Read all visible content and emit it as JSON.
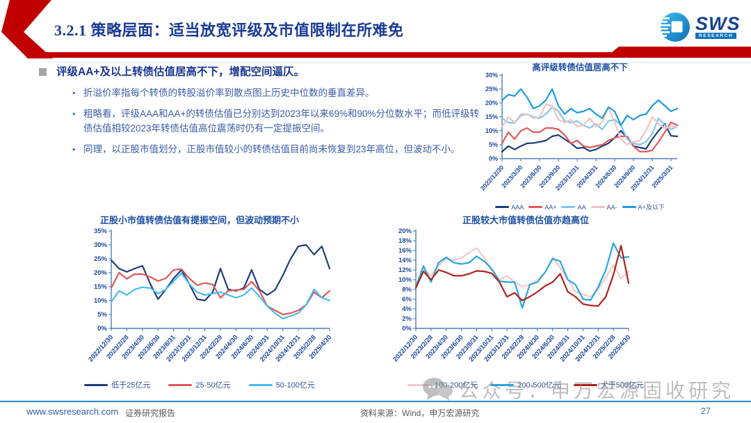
{
  "slide": {
    "title": "3.2.1 策略层面：适当放宽评级及市值限制在所难免",
    "accent_red": "#C00000",
    "logo": {
      "brand": "SWS",
      "sub": "RESEARCH"
    }
  },
  "content": {
    "heading": "评级AA+及以上转债估值居高不下，增配空间逼仄。",
    "bullets": [
      "折溢价率指每个转债的转股溢价率到散点图上历史中位数的垂直差异。",
      "粗略看，评级AAA和AA+的转债估值已分别达到2023年以来69%和90%分位数水平；而低评级转债估值相较2023年转债估值高位震荡时仍有一定提振空间。",
      "同理，以正股市值划分，正股市值较小的转债估值目前尚未恢复到23年高位，但波动不小。"
    ]
  },
  "watermark": {
    "text": "公众号：申万宏源固收研究"
  },
  "footer": {
    "site": "www.swsresearch.com",
    "report_type": "证券研究报告",
    "source": "资料来源：Wind，申万宏源研究",
    "page": "27"
  },
  "chart_data": [
    {
      "type": "line",
      "title": "高评级转债估值居高不下",
      "xlabel": "",
      "ylabel": "",
      "ylim": [
        0,
        30
      ],
      "ytick_step": 5,
      "grid": false,
      "legend_position": "bottom",
      "n_points": 29,
      "points_per_label": 3,
      "x_labels": [
        "2022/12/30",
        "2023/3/30",
        "2023/6/30",
        "2023/9/30",
        "2023/12/31",
        "2024/3/31",
        "2024/6/30",
        "2024/9/30",
        "2024/12/31",
        "2025/3/31"
      ],
      "series": [
        {
          "name": "AAA",
          "color": "#1F3D7C",
          "values": [
            2.5,
            4.5,
            3.3,
            4.5,
            5.5,
            5.6,
            6.0,
            6.5,
            8.0,
            8.5,
            7.0,
            5.5,
            3.7,
            4.0,
            2.7,
            3.3,
            4.5,
            5.5,
            7.5,
            10.0,
            7.5,
            4.5,
            4.0,
            3.5,
            7.0,
            10.0,
            12.5,
            8.2,
            8.0
          ]
        },
        {
          "name": "AA+",
          "color": "#E15858",
          "values": [
            5.5,
            9.5,
            7.0,
            10.0,
            11.0,
            9.5,
            9.5,
            11.0,
            11.0,
            10.5,
            8.5,
            5.5,
            6.5,
            4.5,
            4.0,
            4.5,
            5.0,
            6.5,
            7.5,
            8.0,
            8.0,
            4.5,
            2.5,
            2.5,
            3.0,
            6.0,
            9.5,
            13.0,
            12.0
          ]
        },
        {
          "name": "AA",
          "color": "#7EC8F0",
          "values": [
            14.5,
            13.0,
            12.8,
            15.5,
            16.0,
            15.0,
            14.5,
            16.0,
            18.5,
            17.0,
            13.5,
            13.0,
            13.5,
            12.0,
            11.0,
            12.5,
            10.5,
            13.5,
            14.0,
            12.0,
            7.0,
            5.5,
            5.0,
            6.0,
            9.0,
            14.5,
            12.0,
            10.5,
            11.5
          ]
        },
        {
          "name": "AA-",
          "color": "#F3C3C3",
          "values": [
            11.5,
            15.0,
            13.0,
            16.0,
            16.0,
            14.5,
            15.0,
            19.5,
            19.0,
            14.0,
            13.0,
            14.0,
            11.5,
            12.0,
            14.5,
            11.5,
            13.0,
            18.5,
            13.0,
            7.0,
            5.0,
            6.0,
            6.5,
            10.0,
            15.0,
            12.5,
            11.0,
            11.5,
            11.5
          ]
        },
        {
          "name": "A+及以下",
          "color": "#1C9CDE",
          "values": [
            21.0,
            23.0,
            22.5,
            25.0,
            22.0,
            18.0,
            19.0,
            21.0,
            25.0,
            19.0,
            16.0,
            18.0,
            16.5,
            17.0,
            18.0,
            16.0,
            14.5,
            18.5,
            17.0,
            12.0,
            15.5,
            14.0,
            15.5,
            16.0,
            19.0,
            21.0,
            19.0,
            17.0,
            18.0
          ]
        }
      ]
    },
    {
      "type": "line",
      "title": "正股小市值转债估值有提振空间，但波动预期不小",
      "xlabel": "",
      "ylabel": "",
      "ylim": [
        0,
        35
      ],
      "ytick_step": 5,
      "grid": false,
      "legend_position": "bottom",
      "n_points": 29,
      "points_per_label": 2,
      "x_labels": [
        "2022/12/30",
        "2023/2/28",
        "2023/4/30",
        "2023/6/30",
        "2023/8/31",
        "2023/10/31",
        "2023/12/31",
        "2024/2/29",
        "2024/4/30",
        "2024/6/30",
        "2024/8/31",
        "2024/10/31",
        "2024/12/31",
        "2025/2/28",
        "2025/4/30"
      ],
      "series": [
        {
          "name": "低于25亿元",
          "color": "#1F3D7C",
          "values": [
            24.5,
            21.5,
            20.3,
            21.5,
            22.5,
            16.0,
            10.5,
            14.0,
            18.0,
            21.0,
            16.0,
            10.5,
            10.0,
            13.0,
            21.5,
            14.0,
            13.5,
            14.5,
            21.0,
            14.0,
            12.0,
            13.8,
            19.0,
            25.0,
            29.5,
            30.0,
            26.5,
            29.5,
            21.5
          ]
        },
        {
          "name": "25-50亿元",
          "color": "#E15858",
          "values": [
            14.5,
            20.0,
            17.8,
            19.5,
            19.5,
            18.5,
            17.0,
            18.0,
            21.0,
            21.3,
            18.0,
            15.5,
            16.3,
            15.8,
            11.0,
            13.5,
            13.8,
            14.0,
            16.8,
            13.5,
            8.0,
            6.5,
            5.0,
            5.5,
            6.5,
            8.5,
            13.0,
            11.0,
            13.5
          ]
        },
        {
          "name": "50-100亿元",
          "color": "#45BDEE",
          "values": [
            9.5,
            13.5,
            12.0,
            14.0,
            14.8,
            14.5,
            12.5,
            14.0,
            17.0,
            19.8,
            16.0,
            13.0,
            12.0,
            12.5,
            13.0,
            12.0,
            11.0,
            12.0,
            14.5,
            11.5,
            8.0,
            5.5,
            3.5,
            4.5,
            5.5,
            8.5,
            14.0,
            11.0,
            10.0
          ]
        }
      ]
    },
    {
      "type": "line",
      "title": "正股较大市值转债估值亦趋高位",
      "xlabel": "",
      "ylabel": "",
      "ylim": [
        0,
        20
      ],
      "ytick_step": 2,
      "grid": false,
      "legend_position": "bottom",
      "n_points": 29,
      "points_per_label": 2,
      "x_labels": [
        "2022/12/30",
        "2023/2/28",
        "2023/4/30",
        "2023/6/30",
        "2023/8/31",
        "2023/10/31",
        "2023/12/31",
        "2024/2/29",
        "2024/4/30",
        "2024/6/30",
        "2024/8/31",
        "2024/10/31",
        "2024/12/31",
        "2025/2/28",
        "2025/4/30"
      ],
      "series": [
        {
          "name": "100-200亿元",
          "color": "#F5C8C4",
          "values": [
            8.5,
            12.0,
            10.8,
            13.0,
            14.3,
            14.0,
            14.5,
            15.5,
            16.5,
            14.5,
            12.0,
            10.0,
            10.8,
            9.5,
            8.5,
            9.0,
            10.0,
            11.5,
            14.5,
            12.5,
            10.0,
            7.5,
            7.0,
            6.5,
            8.0,
            10.5,
            13.0,
            10.2,
            11.7
          ]
        },
        {
          "name": "200-500亿元",
          "color": "#25A7E0",
          "values": [
            8.5,
            12.8,
            9.5,
            13.5,
            14.6,
            13.5,
            13.2,
            13.5,
            14.8,
            13.8,
            12.2,
            9.7,
            9.5,
            9.5,
            4.2,
            9.0,
            9.5,
            11.5,
            14.3,
            13.8,
            10.0,
            9.0,
            6.0,
            5.8,
            8.5,
            12.0,
            17.5,
            14.5,
            14.7
          ]
        },
        {
          "name": "大于500亿元",
          "color": "#B0231B",
          "values": [
            8.3,
            11.7,
            10.0,
            12.0,
            11.5,
            10.8,
            10.8,
            11.2,
            11.8,
            11.7,
            11.3,
            9.5,
            6.5,
            7.3,
            5.7,
            6.5,
            7.5,
            8.7,
            9.5,
            11.2,
            7.5,
            6.5,
            5.0,
            4.7,
            4.6,
            6.5,
            11.0,
            17.0,
            9.3
          ]
        }
      ]
    }
  ]
}
